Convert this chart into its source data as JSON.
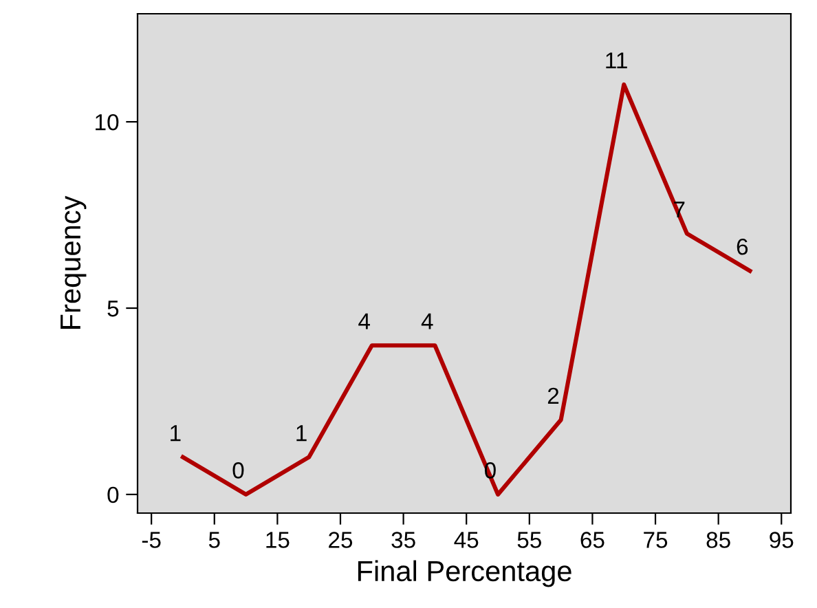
{
  "chart_data": {
    "type": "line",
    "xlabel": "Final Percentage",
    "ylabel": "Frequency",
    "x": [
      0,
      10,
      20,
      30,
      40,
      50,
      60,
      70,
      80,
      90
    ],
    "series": [
      {
        "color": "#b00000",
        "values": [
          1,
          0,
          1,
          4,
          4,
          0,
          2,
          11,
          7,
          6
        ]
      }
    ],
    "data_labels": true,
    "xlim": [
      -7.2,
      96.5
    ],
    "ylim": [
      -0.5,
      12.9
    ],
    "xticks": [
      -5,
      5,
      15,
      25,
      35,
      45,
      55,
      65,
      75,
      85,
      95
    ],
    "yticks": [
      0,
      5,
      10
    ],
    "grid": false,
    "marker": "none",
    "line_style": "solid"
  }
}
